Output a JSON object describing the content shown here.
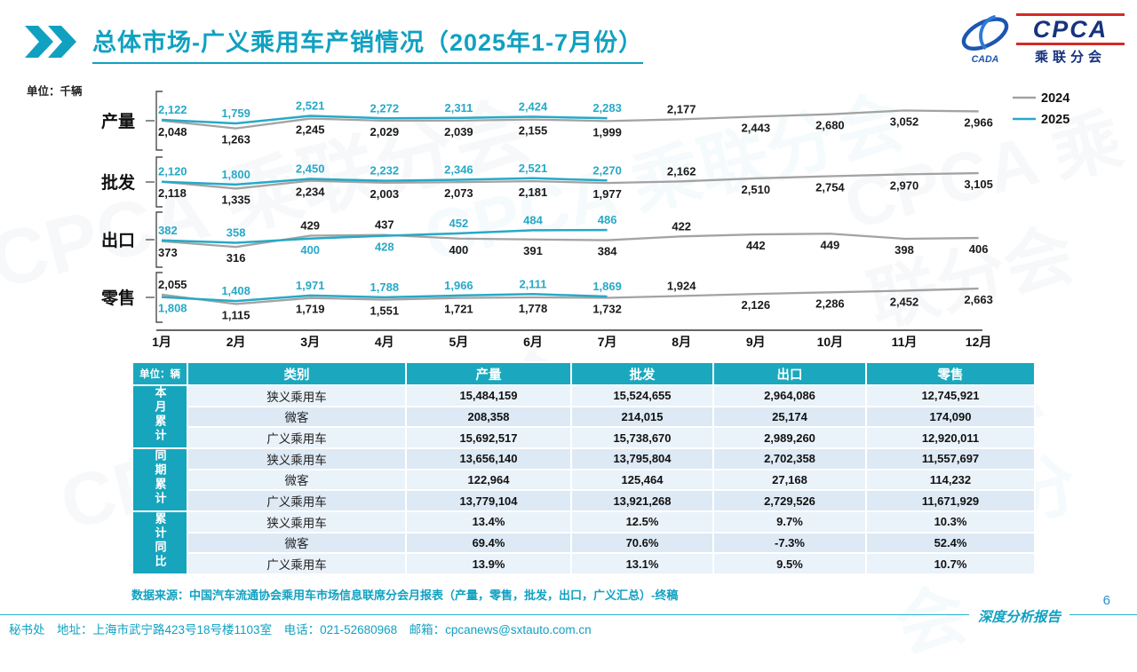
{
  "accent": "#10a1c1",
  "colors": {
    "series_2024": "#a3a3a3",
    "series_2025": "#27a9c7",
    "table_header_bg": "#1ba8be",
    "logo_blue": "#16337f",
    "logo_red": "#d42b26"
  },
  "header": {
    "title": "总体市场-广义乘用车产销情况（2025年1-7月份）",
    "logo": {
      "name": "CPCA",
      "subtitle": "乘联分会",
      "emblem": "CADA"
    }
  },
  "watermark": "CPCA 乘联分会",
  "chart": {
    "unit_label": "单位：千辆",
    "legend": [
      {
        "label": "2024"
      },
      {
        "label": "2025"
      }
    ]
  },
  "chart_data": {
    "type": "line",
    "grid": false,
    "legend_position": "right-top",
    "categories": [
      "1月",
      "2月",
      "3月",
      "4月",
      "5月",
      "6月",
      "7月",
      "8月",
      "9月",
      "10月",
      "11月",
      "12月"
    ],
    "panels": [
      {
        "row_label": "产量",
        "series": [
          {
            "name": "2024",
            "values": [
              2048,
              1263,
              2245,
              2029,
              2039,
              2155,
              1999,
              2177,
              2443,
              2680,
              3052,
              2966
            ]
          },
          {
            "name": "2025",
            "values": [
              2122,
              1759,
              2521,
              2272,
              2311,
              2424,
              2283
            ]
          }
        ]
      },
      {
        "row_label": "批发",
        "series": [
          {
            "name": "2024",
            "values": [
              2118,
              1335,
              2234,
              2003,
              2073,
              2181,
              1977,
              2162,
              2510,
              2754,
              2970,
              3105
            ]
          },
          {
            "name": "2025",
            "values": [
              2120,
              1800,
              2450,
              2232,
              2346,
              2521,
              2270
            ]
          }
        ]
      },
      {
        "row_label": "出口",
        "series": [
          {
            "name": "2024",
            "values": [
              373,
              316,
              429,
              437,
              400,
              391,
              384,
              422,
              442,
              449,
              398,
              406
            ]
          },
          {
            "name": "2025",
            "values": [
              382,
              358,
              400,
              428,
              452,
              484,
              486
            ]
          }
        ]
      },
      {
        "row_label": "零售",
        "series": [
          {
            "name": "2024",
            "values": [
              2055,
              1115,
              1719,
              1551,
              1721,
              1778,
              1732,
              1924,
              2126,
              2286,
              2452,
              2663
            ]
          },
          {
            "name": "2025",
            "values": [
              1808,
              1408,
              1971,
              1788,
              1966,
              2111,
              1869
            ]
          }
        ]
      }
    ]
  },
  "table": {
    "unit_header": "单位：辆",
    "columns": [
      "类别",
      "产量",
      "批发",
      "出口",
      "零售"
    ],
    "groups": [
      {
        "label": "本月累计",
        "rows": [
          {
            "category": "狭义乘用车",
            "values": [
              "15,484,159",
              "15,524,655",
              "2,964,086",
              "12,745,921"
            ]
          },
          {
            "category": "微客",
            "values": [
              "208,358",
              "214,015",
              "25,174",
              "174,090"
            ]
          },
          {
            "category": "广义乘用车",
            "values": [
              "15,692,517",
              "15,738,670",
              "2,989,260",
              "12,920,011"
            ]
          }
        ]
      },
      {
        "label": "同期累计",
        "rows": [
          {
            "category": "狭义乘用车",
            "values": [
              "13,656,140",
              "13,795,804",
              "2,702,358",
              "11,557,697"
            ]
          },
          {
            "category": "微客",
            "values": [
              "122,964",
              "125,464",
              "27,168",
              "114,232"
            ]
          },
          {
            "category": "广义乘用车",
            "values": [
              "13,779,104",
              "13,921,268",
              "2,729,526",
              "11,671,929"
            ]
          }
        ]
      },
      {
        "label": "累计同比",
        "rows": [
          {
            "category": "狭义乘用车",
            "values": [
              "13.4%",
              "12.5%",
              "9.7%",
              "10.3%"
            ]
          },
          {
            "category": "微客",
            "values": [
              "69.4%",
              "70.6%",
              "-7.3%",
              "52.4%"
            ]
          },
          {
            "category": "广义乘用车",
            "values": [
              "13.9%",
              "13.1%",
              "9.5%",
              "10.7%"
            ]
          }
        ]
      }
    ]
  },
  "notes": {
    "source": "数据来源：中国汽车流通协会乘用车市场信息联席分会月报表（产量，零售，批发，出口，广义汇总）-终稿"
  },
  "footer": {
    "contact": "秘书处　地址：上海市武宁路423号18号楼1103室　电话：021-52680968　邮箱：cpcanews@sxtauto.com.cn",
    "report_label": "深度分析报告",
    "page_number": "6"
  }
}
